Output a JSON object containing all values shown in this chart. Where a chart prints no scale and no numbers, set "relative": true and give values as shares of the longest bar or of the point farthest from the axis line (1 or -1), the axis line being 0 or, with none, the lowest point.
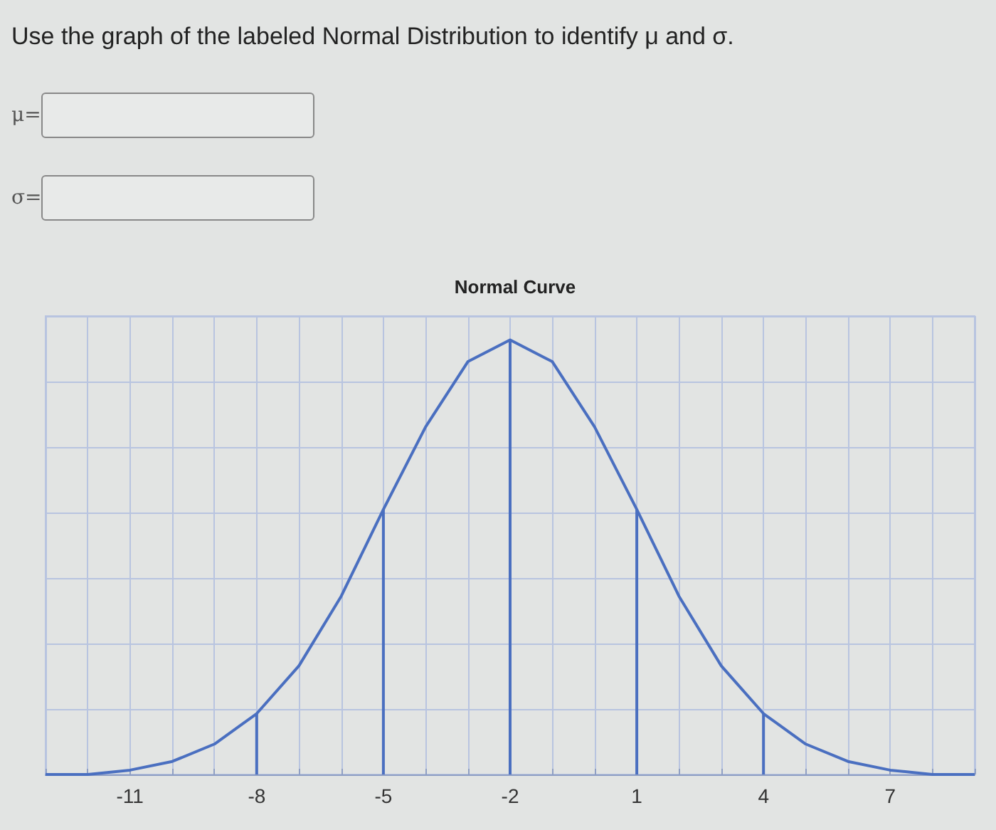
{
  "chart_data": {
    "type": "line",
    "title": "Normal Curve",
    "relative": true,
    "annotations": [
      "Use the graph of the labeled Normal Distribution to identify μ and σ.",
      "μ=",
      "σ="
    ],
    "xlim": [
      -13,
      9
    ],
    "xticks": [
      {
        "value": -13,
        "label": null
      },
      {
        "value": -12,
        "label": null
      },
      -11,
      {
        "value": -10,
        "label": null
      },
      {
        "value": -9,
        "label": null
      },
      -8,
      {
        "value": -7,
        "label": null
      },
      {
        "value": -6,
        "label": null
      },
      -5,
      {
        "value": -4,
        "label": null
      },
      {
        "value": -3,
        "label": null
      },
      -2,
      {
        "value": -1,
        "label": null
      },
      {
        "value": 0,
        "label": null
      },
      1,
      {
        "value": 2,
        "label": null
      },
      {
        "value": 3,
        "label": null
      },
      4,
      {
        "value": 5,
        "label": null
      },
      {
        "value": 6,
        "label": null
      },
      7,
      {
        "value": 8,
        "label": null
      },
      {
        "value": 9,
        "label": null
      }
    ],
    "grid": true,
    "marker": "none",
    "series": [
      {
        "color": "#4a6fc0",
        "x": [
          -13,
          -12,
          -11,
          -10,
          -9,
          -8,
          -7,
          -6,
          -5,
          -4,
          -3,
          -2,
          -1,
          0,
          1,
          2,
          3,
          4,
          5,
          6,
          7,
          8,
          9
        ],
        "values": [
          0.0,
          0.0,
          0.01,
          0.03,
          0.07,
          0.14,
          0.25,
          0.41,
          0.61,
          0.8,
          0.95,
          1,
          0.95,
          0.8,
          0.61,
          0.41,
          0.25,
          0.14,
          0.07,
          0.03,
          0.01,
          0.0,
          0.0
        ]
      },
      {
        "type": "bar",
        "color": "#4a6fc0",
        "x": [
          -8,
          -5,
          -2,
          1,
          4
        ],
        "values": [
          0.14,
          0.61,
          1,
          0.61,
          0.14
        ]
      }
    ]
  }
}
